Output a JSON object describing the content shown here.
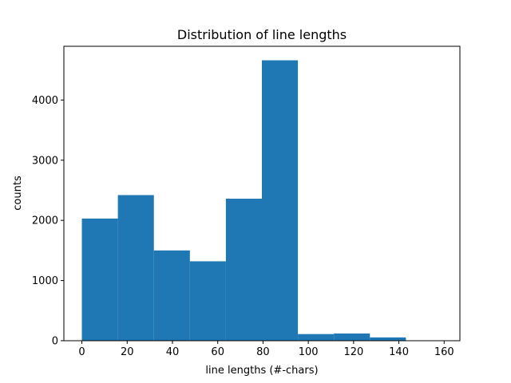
{
  "chart_data": {
    "type": "bar",
    "title": "Distribution of line lengths",
    "xlabel": "line lengths (#-chars)",
    "ylabel": "counts",
    "bin_edges": [
      0,
      15.9,
      31.8,
      47.7,
      63.6,
      79.5,
      95.4,
      111.3,
      127.2,
      143.1,
      159
    ],
    "values": [
      2030,
      2420,
      1500,
      1320,
      2360,
      4660,
      110,
      120,
      55,
      0
    ],
    "xlim": [
      -7.95,
      166.95
    ],
    "ylim": [
      0,
      4893
    ],
    "xticks": [
      0,
      20,
      40,
      60,
      80,
      100,
      120,
      140,
      160
    ],
    "yticks": [
      0,
      1000,
      2000,
      3000,
      4000
    ],
    "bar_color": "#1f77b4",
    "grid": false,
    "legend": "none"
  }
}
